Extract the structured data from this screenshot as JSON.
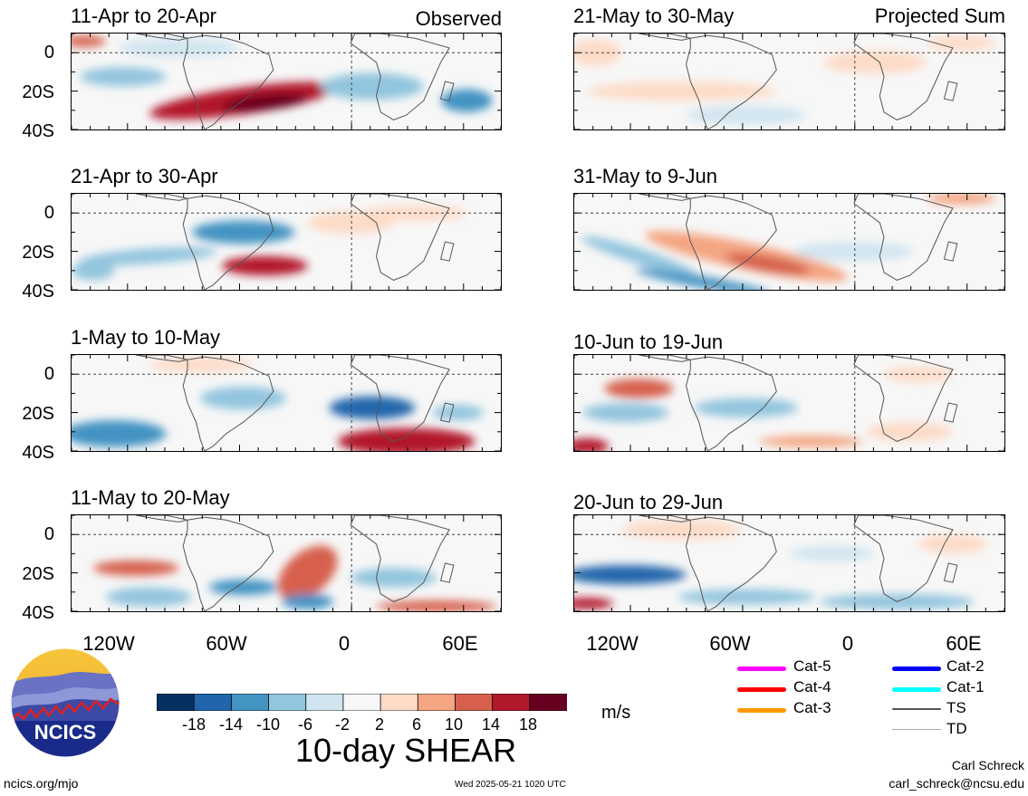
{
  "panels": [
    {
      "title": "11-Apr to 20-Apr",
      "tag": "Observed"
    },
    {
      "title": "21-Apr to 30-Apr",
      "tag": ""
    },
    {
      "title": "1-May to 10-May",
      "tag": ""
    },
    {
      "title": "11-May to 20-May",
      "tag": ""
    },
    {
      "title": "21-May to 30-May",
      "tag": "Projected Sum"
    },
    {
      "title": "31-May to 9-Jun",
      "tag": ""
    },
    {
      "title": "10-Jun to 19-Jun",
      "tag": ""
    },
    {
      "title": "20-Jun to 29-Jun",
      "tag": ""
    }
  ],
  "lat_labels": [
    "0",
    "20S",
    "40S"
  ],
  "lon_labels": [
    "120W",
    "60W",
    "0",
    "60E"
  ],
  "colorbar": {
    "title": "10-day SHEAR",
    "units": "m/s",
    "ticks": [
      "-18",
      "-14",
      "-10",
      "-6",
      "-2",
      "2",
      "6",
      "10",
      "14",
      "18"
    ],
    "colors": [
      "#053061",
      "#2166ac",
      "#4393c3",
      "#92c5de",
      "#d1e5f0",
      "#f7f7f7",
      "#fddbc7",
      "#f4a582",
      "#d6604d",
      "#b2182b",
      "#67001f"
    ]
  },
  "legend": [
    {
      "label": "Cat-5",
      "color": "#ff00ff"
    },
    {
      "label": "Cat-4",
      "color": "#ff0000"
    },
    {
      "label": "Cat-3",
      "color": "#ff9900"
    },
    {
      "label": "Cat-2",
      "color": "#0000ff"
    },
    {
      "label": "Cat-1",
      "color": "#00ffff"
    },
    {
      "label": "TS",
      "color": "#555555"
    },
    {
      "label": "TD",
      "color": "#aaaaaa"
    }
  ],
  "logo": {
    "text": "NCICS"
  },
  "footer": {
    "url": "ncics.org/mjo",
    "timestamp": "Wed 2025-05-21 1020 UTC",
    "author": "Carl Schreck",
    "email": "carl_schreck@ncsu.edu"
  }
}
